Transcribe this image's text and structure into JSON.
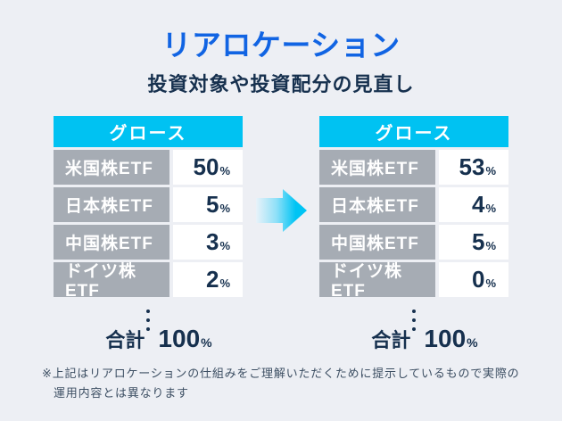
{
  "colors": {
    "background": "#edeff4",
    "accent_cyan": "#00c2f2",
    "title_blue": "#1164e3",
    "navy_text": "#16304e",
    "label_cell_gray": "#a6acb4"
  },
  "header": {
    "title": "リアロケーション",
    "subtitle": "投資対象や投資配分の見直し"
  },
  "tables": {
    "before": {
      "category": "グロース",
      "rows": [
        {
          "label": "米国株ETF",
          "value": "50",
          "unit": "%"
        },
        {
          "label": "日本株ETF",
          "value": "5",
          "unit": "%"
        },
        {
          "label": "中国株ETF",
          "value": "3",
          "unit": "%"
        },
        {
          "label": "ドイツ株ETF",
          "value": "2",
          "unit": "%"
        }
      ],
      "total": {
        "label": "合計",
        "value": "100",
        "unit": "%"
      }
    },
    "after": {
      "category": "グロース",
      "rows": [
        {
          "label": "米国株ETF",
          "value": "53",
          "unit": "%"
        },
        {
          "label": "日本株ETF",
          "value": "4",
          "unit": "%"
        },
        {
          "label": "中国株ETF",
          "value": "5",
          "unit": "%"
        },
        {
          "label": "ドイツ株ETF",
          "value": "0",
          "unit": "%"
        }
      ],
      "total": {
        "label": "合計",
        "value": "100",
        "unit": "%"
      }
    }
  },
  "icons": {
    "arrow": "right-arrow",
    "ellipsis": "vertical-dots"
  },
  "footnote": {
    "line1": "※上記はリアロケーションの仕組みをご理解いただくために提示しているもので実際の",
    "line2": "運用内容とは異なります"
  }
}
